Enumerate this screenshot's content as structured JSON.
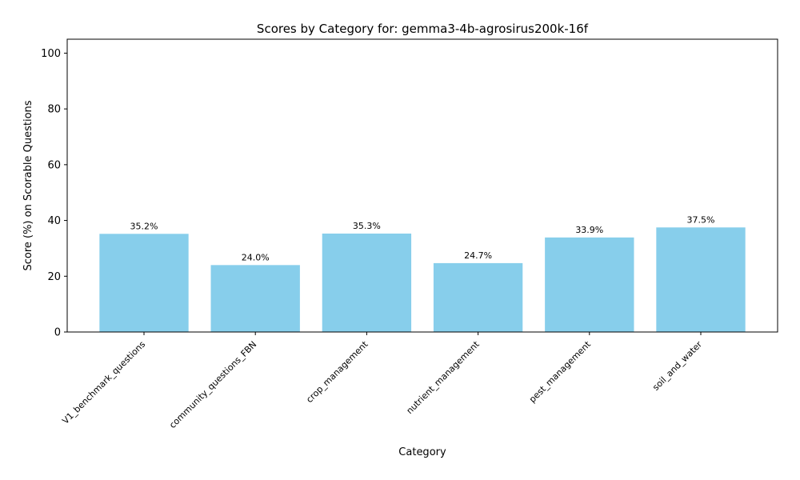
{
  "chart_data": {
    "type": "bar",
    "title": "Scores by Category for: gemma3-4b-agrosirus200k-16f",
    "xlabel": "Category",
    "ylabel": "Score (%) on Scorable Questions",
    "ylim": [
      0,
      105
    ],
    "yticks": [
      0,
      20,
      40,
      60,
      80,
      100
    ],
    "grid": false,
    "legend": "none",
    "bar_color": "#87ceeb",
    "categories": [
      "V1_benchmark_questions",
      "community_questions_FBN",
      "crop_management",
      "nutrient_management",
      "pest_management",
      "soil_and_water"
    ],
    "values": [
      35.2,
      24.0,
      35.3,
      24.7,
      33.9,
      37.5
    ],
    "value_labels": [
      "35.2%",
      "24.0%",
      "35.3%",
      "24.7%",
      "33.9%",
      "37.5%"
    ]
  }
}
